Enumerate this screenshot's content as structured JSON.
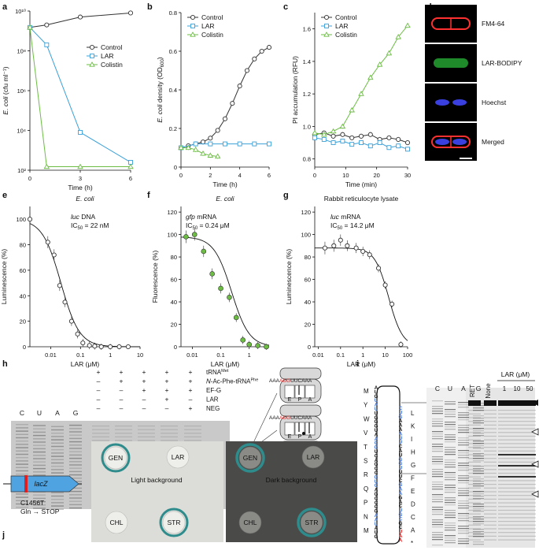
{
  "colors": {
    "control": "#333333",
    "lar": "#3aa0d8",
    "colistin": "#6dbd45",
    "red": "#e02020",
    "blue_seq": "#3a6fd8",
    "gel": "#c9c9c9",
    "plate_light": "#dcdcd8",
    "plate_dark": "#4a4a48",
    "zone": "#2f8c8c"
  },
  "panel_letters": {
    "a": "a",
    "b": "b",
    "c": "c",
    "d": "d",
    "e": "e",
    "f": "f",
    "g": "g",
    "h": "h",
    "i": "i",
    "j": "j"
  },
  "panel_a": {
    "ylabel_pre": "E. coli",
    "ylabel_post": " (cfu ml⁻¹)",
    "xlabel": "Time (h)",
    "yticks": [
      "10¹⁰",
      "10⁸",
      "10⁶",
      "10⁴",
      "10²"
    ],
    "xticks": [
      "0",
      "3",
      "6"
    ],
    "legend": [
      "Control",
      "LAR",
      "Colistin"
    ],
    "chart_data": {
      "type": "line",
      "x_unit": "h",
      "yscale": "log",
      "ylim": [
        100,
        10000000000.0
      ],
      "xlim": [
        0,
        6
      ],
      "series": [
        {
          "name": "Control",
          "x": [
            0,
            1,
            3,
            6
          ],
          "y": [
            1500000000.0,
            2000000000.0,
            5000000000.0,
            8000000000.0
          ]
        },
        {
          "name": "LAR",
          "x": [
            0,
            1,
            3,
            6
          ],
          "y": [
            1500000000.0,
            200000000.0,
            8000.0,
            250.0
          ]
        },
        {
          "name": "Colistin",
          "x": [
            0,
            1,
            3,
            6
          ],
          "y": [
            1500000000.0,
            150.0,
            150.0,
            150.0
          ]
        }
      ]
    }
  },
  "panel_b": {
    "ylabel": "E. coli density (OD600)",
    "xlabel": "Time (h)",
    "yticks": [
      "0",
      "0.2",
      "0.4",
      "0.6",
      "0.8"
    ],
    "xticks": [
      "0",
      "2",
      "4",
      "6"
    ],
    "legend": [
      "Control",
      "LAR",
      "Colistin"
    ],
    "chart_data": {
      "type": "line",
      "ylim": [
        0,
        0.8
      ],
      "xlim": [
        0,
        6
      ],
      "series": [
        {
          "name": "Control",
          "x": [
            0,
            0.5,
            1,
            1.5,
            2,
            2.5,
            3,
            3.5,
            4,
            4.5,
            5,
            5.5,
            6
          ],
          "y": [
            0.1,
            0.11,
            0.12,
            0.13,
            0.15,
            0.19,
            0.25,
            0.33,
            0.42,
            0.5,
            0.56,
            0.6,
            0.62
          ]
        },
        {
          "name": "LAR",
          "x": [
            0,
            1,
            2,
            3,
            4,
            5,
            6
          ],
          "y": [
            0.1,
            0.12,
            0.12,
            0.12,
            0.12,
            0.12,
            0.12
          ]
        },
        {
          "name": "Colistin",
          "x": [
            0,
            0.5,
            1,
            1.5,
            2,
            2.5
          ],
          "y": [
            0.1,
            0.1,
            0.09,
            0.07,
            0.06,
            0.055
          ]
        }
      ]
    }
  },
  "panel_c": {
    "ylabel": "PI accumulation (RFU)",
    "xlabel": "Time (min)",
    "yticks": [
      "0.8",
      "1.0",
      "1.2",
      "1.4",
      "1.6"
    ],
    "xticks": [
      "0",
      "10",
      "20",
      "30"
    ],
    "legend": [
      "Control",
      "LAR",
      "Colistin"
    ],
    "chart_data": {
      "type": "line",
      "ylim": [
        0.75,
        1.7
      ],
      "xlim": [
        0,
        30
      ],
      "series": [
        {
          "name": "Control",
          "x": [
            0,
            3,
            6,
            9,
            12,
            15,
            18,
            21,
            24,
            27,
            30
          ],
          "y": [
            0.95,
            0.96,
            0.94,
            0.95,
            0.93,
            0.94,
            0.95,
            0.92,
            0.93,
            0.92,
            0.9
          ]
        },
        {
          "name": "LAR",
          "x": [
            0,
            3,
            6,
            9,
            12,
            15,
            18,
            21,
            24,
            27,
            30
          ],
          "y": [
            0.93,
            0.92,
            0.9,
            0.91,
            0.89,
            0.9,
            0.88,
            0.9,
            0.87,
            0.88,
            0.86
          ]
        },
        {
          "name": "Colistin",
          "x": [
            0,
            3,
            6,
            9,
            12,
            15,
            18,
            21,
            24,
            27,
            30
          ],
          "y": [
            0.96,
            0.95,
            0.97,
            1.0,
            1.1,
            1.2,
            1.3,
            1.38,
            1.45,
            1.55,
            1.62
          ]
        }
      ]
    }
  },
  "panel_d": {
    "labels": [
      "FM4-64",
      "LAR-BODIPY",
      "Hoechst",
      "Merged"
    ]
  },
  "panel_e": {
    "title": "E. coli",
    "ann_gene": "luc",
    "ann_rest": " DNA",
    "ic50": "IC50 = 22 nM",
    "ylabel": "Luminescence (%)",
    "xlabel": "LAR (μM)",
    "yticks": [
      "0",
      "20",
      "40",
      "60",
      "80",
      "100"
    ],
    "xticks": [
      "0.01",
      "0.1",
      "1",
      "10"
    ],
    "chart_data": {
      "type": "scatter",
      "xscale": "log",
      "xlim": [
        0.002,
        10
      ],
      "ylim": [
        0,
        110
      ],
      "series": [
        {
          "name": "luc DNA",
          "x": [
            0.002,
            0.008,
            0.013,
            0.02,
            0.03,
            0.05,
            0.08,
            0.12,
            0.2,
            0.3,
            0.5,
            1,
            2,
            4
          ],
          "y": [
            100,
            82,
            72,
            48,
            35,
            20,
            10,
            3,
            1,
            0.5,
            0,
            0,
            0,
            0
          ]
        }
      ]
    }
  },
  "panel_f": {
    "title": "E. coli",
    "ann_gene": "gfp",
    "ann_rest": " mRNA",
    "ic50": "IC50 = 0.24 μM",
    "ylabel": "Fluorescence (%)",
    "xlabel": "LAR (μM)",
    "yticks": [
      "0",
      "20",
      "40",
      "60",
      "80",
      "100",
      "120"
    ],
    "xticks": [
      "0.01",
      "0.1",
      "1"
    ],
    "chart_data": {
      "type": "scatter",
      "xscale": "log",
      "xlim": [
        0.004,
        5
      ],
      "ylim": [
        0,
        125
      ],
      "series": [
        {
          "name": "gfp mRNA",
          "x": [
            0.006,
            0.012,
            0.025,
            0.05,
            0.1,
            0.2,
            0.35,
            0.6,
            1,
            2,
            4
          ],
          "y": [
            98,
            100,
            85,
            65,
            52,
            44,
            26,
            6,
            2,
            1,
            0
          ]
        }
      ]
    }
  },
  "panel_g": {
    "title": "Rabbit reticulocyte lysate",
    "ann_gene": "luc",
    "ann_rest": " mRNA",
    "ic50": "IC50 = 14.2 μM",
    "ylabel": "Luminescence (%)",
    "xlabel": "LAR (μM)",
    "yticks": [
      "0",
      "20",
      "40",
      "60",
      "80",
      "100",
      "120"
    ],
    "xticks": [
      "0.01",
      "0.1",
      "1",
      "10",
      "100"
    ],
    "chart_data": {
      "type": "scatter",
      "xscale": "log",
      "xlim": [
        0.007,
        100
      ],
      "ylim": [
        0,
        125
      ],
      "series": [
        {
          "name": "luc mRNA",
          "x": [
            0.02,
            0.05,
            0.1,
            0.2,
            0.5,
            1,
            2,
            5,
            10,
            20,
            50
          ],
          "y": [
            88,
            90,
            95,
            90,
            88,
            85,
            82,
            70,
            55,
            38,
            2
          ]
        }
      ]
    }
  },
  "panel_h": {
    "rows": [
      "tRNAMet",
      "N-Ac-Phe-tRNAPhe",
      "EF-G",
      "LAR",
      "NEG"
    ],
    "row_text": [
      "tRNA",
      "N-Ac-Phe-tRNA",
      "EF-G",
      "LAR",
      "NEG"
    ],
    "row_sup": [
      "Met",
      "",
      "",
      "",
      ""
    ],
    "signs": [
      [
        "+",
        "+",
        "+",
        "+",
        "+"
      ],
      [
        "–",
        "+",
        "+",
        "+",
        "+"
      ],
      [
        "–",
        "–",
        "+",
        "+",
        "+"
      ],
      [
        "–",
        "–",
        "–",
        "+",
        "–"
      ],
      [
        "–",
        "–",
        "–",
        "–",
        "+"
      ]
    ],
    "lanes": [
      "C",
      "U",
      "A",
      "G"
    ],
    "mrna_pre": "AAA",
    "mrna_codon": "AUG",
    "mrna_post": "UUC",
    "mrna_end": "AAA",
    "sites": [
      "E",
      "P",
      "A"
    ]
  },
  "panel_i": {
    "lanes": [
      "C",
      "U",
      "A",
      "G"
    ],
    "right_lanes": [
      "RET",
      "None",
      "1",
      "10",
      "50"
    ],
    "lar_header": "LAR (μM)",
    "aa_left": [
      "M",
      "Y",
      "W",
      "V",
      "T",
      "S",
      "R",
      "Q",
      "P",
      "N",
      "M"
    ],
    "aa_right": [
      "L",
      "K",
      "I",
      "H",
      "G",
      "F",
      "E",
      "D",
      "C",
      "A",
      "*"
    ],
    "left_seq": [
      "A",
      "U",
      "G",
      "U",
      "A",
      "U",
      "U",
      "G",
      "G",
      "G",
      "U",
      "A",
      "A",
      "C",
      "G",
      "U",
      "C",
      "A",
      "G",
      "C",
      "C",
      "G",
      "U",
      "C",
      "A",
      "G",
      "C",
      "C",
      "C",
      "G",
      "A",
      "A",
      "U",
      "A",
      "U",
      "G"
    ],
    "right_seq": [
      "C",
      "U",
      "G",
      "A",
      "A",
      "A",
      "A",
      "U",
      "U",
      "C",
      "A",
      "U",
      "G",
      "G",
      "U",
      "U",
      "U",
      "C",
      "G",
      "A",
      "A",
      "G",
      "A",
      "C",
      "U",
      "G",
      "C",
      "G",
      "C",
      "U",
      "A",
      "A"
    ]
  },
  "panel_j": {
    "gene": "lacZ",
    "mutation": "C1456T",
    "change": "Gln → STOP",
    "disks_light": [
      "GEN",
      "LAR",
      "CHL",
      "STR"
    ],
    "disks_dark": [
      "GEN",
      "LAR",
      "CHL",
      "STR"
    ],
    "light_label": "Light background",
    "dark_label": "Dark background"
  }
}
